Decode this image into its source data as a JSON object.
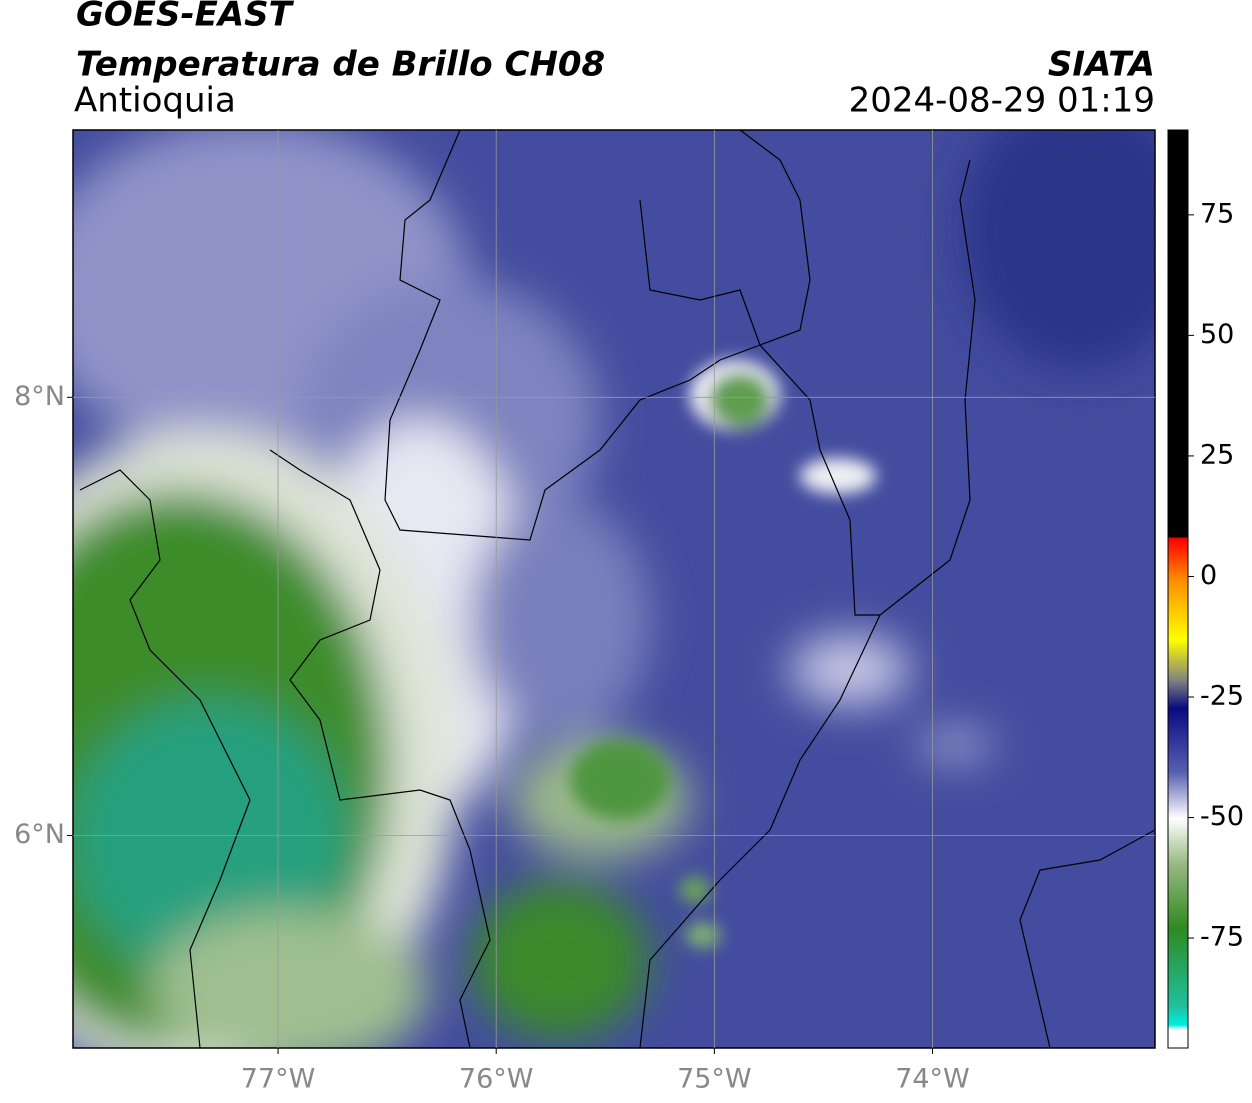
{
  "header": {
    "title": "GOES-EAST",
    "subtitle": "Temperatura de Brillo CH08",
    "region": "Antioquia",
    "source": "SIATA",
    "timestamp": "2024-08-29 01:19"
  },
  "map": {
    "xlim": [
      -77.94,
      -72.98
    ],
    "ylim": [
      5.03,
      9.22
    ],
    "xticks": [
      {
        "value": -77,
        "label": "77°W"
      },
      {
        "value": -76,
        "label": "76°W"
      },
      {
        "value": -75,
        "label": "75°W"
      },
      {
        "value": -74,
        "label": "74°W"
      }
    ],
    "yticks": [
      {
        "value": 6,
        "label": "6°N"
      },
      {
        "value": 8,
        "label": "8°N"
      }
    ],
    "grid": true
  },
  "colorbar": {
    "range": [
      -97.8,
      92.6
    ],
    "ticks": [
      75,
      50,
      25,
      0,
      -25,
      -50,
      -75
    ]
  }
}
